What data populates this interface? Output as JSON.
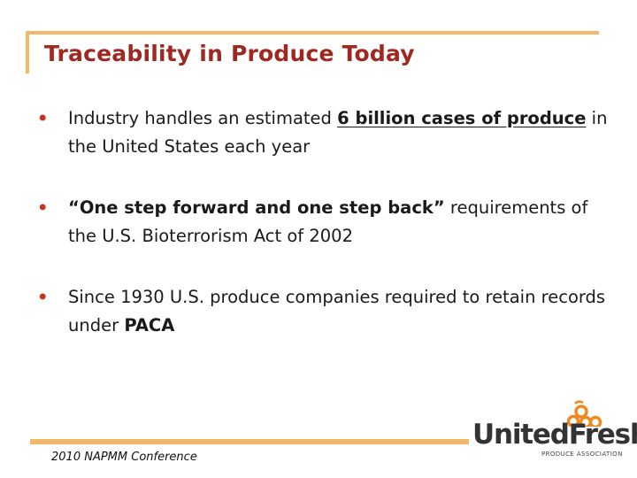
{
  "slide": {
    "title": "Traceability in Produce Today",
    "bullets": [
      {
        "marker": "•",
        "pre": "Industry handles an estimated ",
        "emphasis": "6 billion cases of produce",
        "post": " in the United States each year"
      },
      {
        "marker": "•",
        "emphasis": "“One step forward and one step back”",
        "post": " requirements of the U.S. Bioterrorism Act of 2002"
      },
      {
        "marker": "•",
        "pre": "Since 1930 U.S. produce companies required to retain records under ",
        "emphasis": "PACA"
      }
    ]
  },
  "footer": {
    "text": "2010 NAPMM Conference"
  },
  "logo": {
    "name_part1": "United",
    "name_part2": "Fresh",
    "tagline": "PRODUCE ASSOCIATION",
    "icon": "produce-bunch-icon"
  },
  "colors": {
    "title": "#a02820",
    "accent_frame": "#f2b86a",
    "bullet_marker": "#c8351c",
    "logo_orange": "#ef8a22"
  }
}
